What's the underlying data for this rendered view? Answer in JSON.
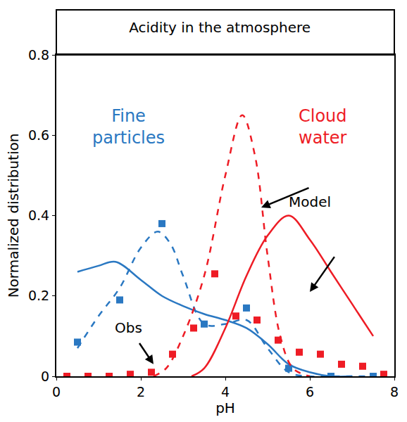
{
  "chart_data": {
    "type": "line",
    "title": "Acidity in the atmosphere",
    "x_label": "pH",
    "y_label": "Normalized distribution",
    "xlim": [
      0,
      8
    ],
    "xticks": [
      0,
      2,
      4,
      6,
      8
    ],
    "ylim": [
      0,
      0.8
    ],
    "yticks": [
      0,
      0.2,
      0.4,
      0.6,
      0.8
    ],
    "grid": false,
    "annotations": [
      "Fine particles",
      "Cloud water",
      "Model",
      "Obs"
    ],
    "series": [
      {
        "type": "scatter",
        "marker": "square",
        "color": "#2a78c2",
        "x": [
          0.5,
          1.5,
          2.5,
          3.5,
          4.5,
          5.5,
          6.5,
          7.5
        ],
        "values": [
          0.085,
          0.19,
          0.38,
          0.13,
          0.17,
          0.02,
          0.0,
          0.0
        ]
      },
      {
        "type": "line",
        "line_style": "dashed",
        "color": "#2a78c2",
        "x": [
          0.5,
          1,
          1.5,
          2,
          2.4,
          2.7,
          3,
          3.5,
          4,
          4.5,
          5,
          5.5,
          6,
          6.5,
          7,
          7.5
        ],
        "values": [
          0.07,
          0.15,
          0.22,
          0.32,
          0.36,
          0.33,
          0.25,
          0.13,
          0.13,
          0.14,
          0.07,
          0.01,
          0.0,
          0.0,
          0.0,
          0.0
        ]
      },
      {
        "type": "line",
        "line_style": "solid",
        "color": "#2a78c2",
        "x": [
          0.5,
          1,
          1.4,
          2,
          2.5,
          3,
          3.5,
          4,
          4.5,
          5,
          5.5,
          6,
          6.5,
          7
        ],
        "values": [
          0.26,
          0.275,
          0.285,
          0.24,
          0.2,
          0.175,
          0.155,
          0.14,
          0.12,
          0.08,
          0.03,
          0.01,
          0.0,
          0.0
        ]
      },
      {
        "type": "scatter",
        "marker": "square",
        "color": "#ee1c25",
        "x": [
          0.25,
          0.75,
          1.25,
          1.75,
          2.25,
          2.75,
          3.25,
          3.75,
          4.25,
          4.75,
          5.25,
          5.75,
          6.25,
          6.75,
          7.25,
          7.75
        ],
        "values": [
          0.0,
          0.0,
          0.0,
          0.005,
          0.01,
          0.055,
          0.12,
          0.255,
          0.15,
          0.14,
          0.09,
          0.06,
          0.055,
          0.03,
          0.025,
          0.005
        ]
      },
      {
        "type": "line",
        "line_style": "dashed",
        "color": "#ee1c25",
        "x": [
          2.3,
          2.6,
          3,
          3.5,
          4,
          4.4,
          4.7,
          5,
          5.3,
          5.6,
          6
        ],
        "values": [
          0.0,
          0.02,
          0.1,
          0.25,
          0.5,
          0.65,
          0.55,
          0.3,
          0.1,
          0.02,
          0.0
        ]
      },
      {
        "type": "line",
        "line_style": "solid",
        "color": "#ee1c25",
        "x": [
          3.2,
          3.5,
          4,
          4.5,
          5,
          5.5,
          6,
          6.5,
          7,
          7.5
        ],
        "values": [
          0.0,
          0.02,
          0.12,
          0.25,
          0.35,
          0.4,
          0.34,
          0.26,
          0.18,
          0.1
        ]
      }
    ]
  }
}
